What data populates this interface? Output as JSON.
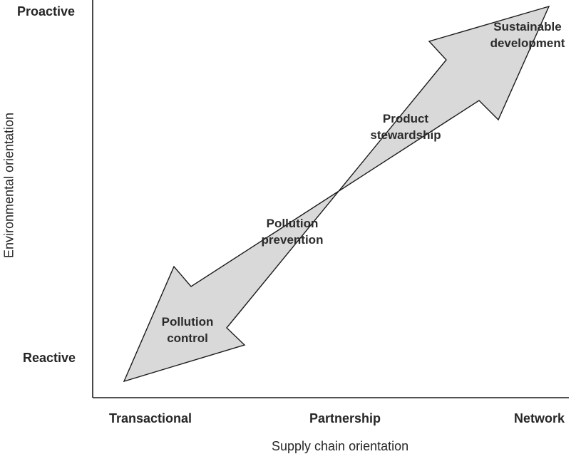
{
  "y_axis": {
    "title": "Environmental orientation",
    "top_label": "Proactive",
    "bottom_label": "Reactive"
  },
  "x_axis": {
    "title": "Supply chain orientation",
    "labels": [
      "Transactional",
      "Partnership",
      "Network"
    ]
  },
  "stages": [
    {
      "line1": "Pollution",
      "line2": "control"
    },
    {
      "line1": "Pollution",
      "line2": "prevention"
    },
    {
      "line1": "Product",
      "line2": "stewardship"
    },
    {
      "line1": "Sustainable",
      "line2": "development"
    }
  ],
  "colors": {
    "arrow_fill": "#d9d9d9",
    "arrow_stroke": "#1a1a1a",
    "axis": "#1a1a1a"
  }
}
